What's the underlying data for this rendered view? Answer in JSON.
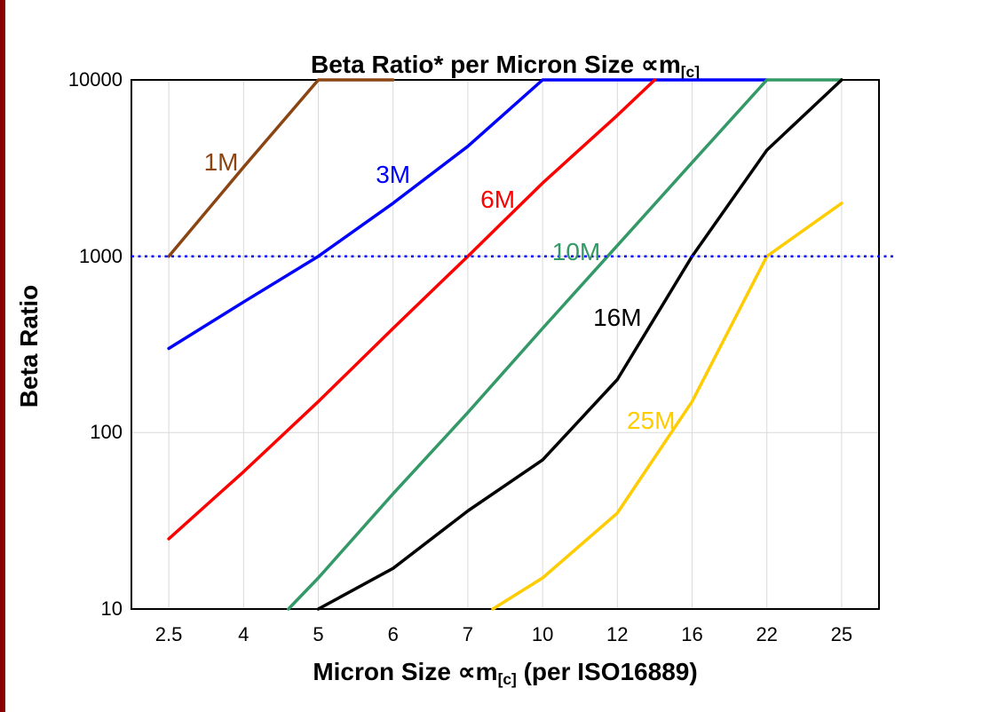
{
  "title_parts": {
    "main": "Beta Ratio* per Micron Size ∝m",
    "sub": "[c]"
  },
  "x_axis_title_parts": {
    "main": "Micron Size ∝m",
    "sub": "[c]",
    "suffix": " (per ISO16889)"
  },
  "y_axis_title": "Beta Ratio",
  "chart_data": {
    "type": "line",
    "title": "Beta Ratio* per Micron Size ∝m[c]",
    "xlabel": "Micron Size ∝m[c] (per ISO16889)",
    "ylabel": "Beta Ratio",
    "x": {
      "scale": "categorical",
      "categories": [
        2.5,
        4,
        5,
        6,
        7,
        10,
        12,
        16,
        22,
        25
      ],
      "tick_labels": [
        "2.5",
        "4",
        "5",
        "6",
        "7",
        "10",
        "12",
        "16",
        "22",
        "25"
      ]
    },
    "y": {
      "scale": "log",
      "range": [
        10,
        10000
      ],
      "ticks": [
        10,
        100,
        1000,
        10000
      ],
      "tick_labels": [
        "10",
        "100",
        "1000",
        "10000"
      ]
    },
    "grid": {
      "vertical": true,
      "horizontal": true,
      "color": "#D9D9D9"
    },
    "reference_line": {
      "beta": 1000,
      "color": "#0000FF",
      "style": "dotted"
    },
    "series": [
      {
        "name": "1M",
        "color": "#8B4513",
        "points": [
          [
            2.5,
            1000
          ],
          [
            4,
            3200
          ],
          [
            5,
            10000
          ],
          [
            6,
            10000
          ]
        ],
        "label": {
          "text": "1M",
          "x": 3.55,
          "y": 3400
        }
      },
      {
        "name": "3M",
        "color": "#0000FF",
        "points": [
          [
            2.5,
            300
          ],
          [
            4,
            550
          ],
          [
            5,
            1000
          ],
          [
            6,
            2000
          ],
          [
            7,
            4200
          ],
          [
            10,
            10000
          ],
          [
            12,
            10000
          ],
          [
            16,
            10000
          ],
          [
            22,
            10000
          ]
        ],
        "label": {
          "text": "3M",
          "x": 6.0,
          "y": 2900
        }
      },
      {
        "name": "6M",
        "color": "#FF0000",
        "points": [
          [
            2.5,
            25
          ],
          [
            4,
            60
          ],
          [
            5,
            150
          ],
          [
            6,
            390
          ],
          [
            7,
            1000
          ],
          [
            10,
            2600
          ],
          [
            12,
            6300
          ],
          [
            14,
            10000
          ]
        ],
        "label": {
          "text": "6M",
          "x": 8.2,
          "y": 2100
        }
      },
      {
        "name": "10M",
        "color": "#339966",
        "points": [
          [
            4.6,
            10
          ],
          [
            5,
            15
          ],
          [
            6,
            45
          ],
          [
            7,
            130
          ],
          [
            10,
            390
          ],
          [
            12,
            1150
          ],
          [
            16,
            3400
          ],
          [
            22,
            10000
          ],
          [
            25,
            10000
          ]
        ],
        "label": {
          "text": "10M",
          "x": 10.9,
          "y": 1050
        }
      },
      {
        "name": "16M",
        "color": "#000000",
        "points": [
          [
            5,
            10
          ],
          [
            6,
            17
          ],
          [
            7,
            36
          ],
          [
            10,
            70
          ],
          [
            12,
            200
          ],
          [
            16,
            1000
          ],
          [
            22,
            4000
          ],
          [
            25,
            10000
          ]
        ],
        "label": {
          "text": "16M",
          "x": 12.0,
          "y": 450
        }
      },
      {
        "name": "25M",
        "color": "#FFCC00",
        "points": [
          [
            8,
            10
          ],
          [
            10,
            15
          ],
          [
            12,
            35
          ],
          [
            16,
            150
          ],
          [
            22,
            1000
          ],
          [
            25,
            2000
          ]
        ],
        "label": {
          "text": "25M",
          "x": 13.8,
          "y": 117
        }
      }
    ]
  }
}
